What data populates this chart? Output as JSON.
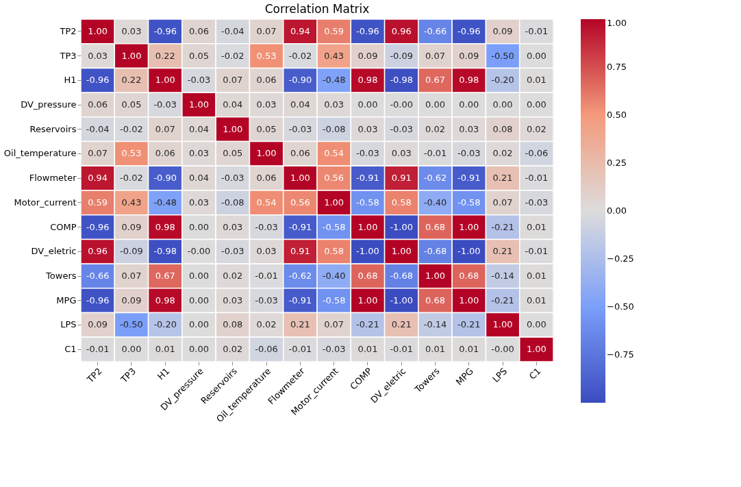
{
  "chart_data": {
    "type": "heatmap",
    "title": "Correlation Matrix",
    "categories": [
      "TP2",
      "TP3",
      "H1",
      "DV_pressure",
      "Reservoirs",
      "Oil_temperature",
      "Flowmeter",
      "Motor_current",
      "COMP",
      "DV_eletric",
      "Towers",
      "MPG",
      "LPS",
      "C1"
    ],
    "y_categories": [
      "TP2",
      "TP3",
      "H1",
      "DV_pressure",
      "Reservoirs",
      "Oil_temperature",
      "Flowmeter",
      "Motor_current",
      "COMP",
      "DV_eletric",
      "Towers",
      "MPG",
      "LPS",
      "C1"
    ],
    "cells": [
      [
        1.0,
        0.03,
        -0.96,
        0.06,
        -0.04,
        0.07,
        0.94,
        0.59,
        -0.96,
        0.96,
        -0.66,
        -0.96,
        0.09,
        -0.01
      ],
      [
        0.03,
        1.0,
        0.22,
        0.05,
        -0.02,
        0.53,
        -0.02,
        0.43,
        0.09,
        -0.09,
        0.07,
        0.09,
        -0.5,
        0.0
      ],
      [
        -0.96,
        0.22,
        1.0,
        -0.03,
        0.07,
        0.06,
        -0.9,
        -0.48,
        0.98,
        -0.98,
        0.67,
        0.98,
        -0.2,
        0.01
      ],
      [
        0.06,
        0.05,
        -0.03,
        1.0,
        0.04,
        0.03,
        0.04,
        0.03,
        0.0,
        0.0,
        0.0,
        0.0,
        0.0,
        0.0
      ],
      [
        -0.04,
        -0.02,
        0.07,
        0.04,
        1.0,
        0.05,
        -0.03,
        -0.08,
        0.03,
        -0.03,
        0.02,
        0.03,
        0.08,
        0.02
      ],
      [
        0.07,
        0.53,
        0.06,
        0.03,
        0.05,
        1.0,
        0.06,
        0.54,
        -0.03,
        0.03,
        -0.01,
        -0.03,
        0.02,
        -0.06
      ],
      [
        0.94,
        -0.02,
        -0.9,
        0.04,
        -0.03,
        0.06,
        1.0,
        0.56,
        -0.91,
        0.91,
        -0.62,
        -0.91,
        0.21,
        -0.01
      ],
      [
        0.59,
        0.43,
        -0.48,
        0.03,
        -0.08,
        0.54,
        0.56,
        1.0,
        -0.58,
        0.58,
        -0.4,
        -0.58,
        0.07,
        -0.03
      ],
      [
        -0.96,
        0.09,
        0.98,
        0.0,
        0.03,
        -0.03,
        -0.91,
        -0.58,
        1.0,
        -1.0,
        0.68,
        1.0,
        -0.21,
        0.01
      ],
      [
        0.96,
        -0.09,
        -0.98,
        0.0,
        -0.03,
        0.03,
        0.91,
        0.58,
        -1.0,
        1.0,
        -0.68,
        -1.0,
        0.21,
        -0.01
      ],
      [
        -0.66,
        0.07,
        0.67,
        0.0,
        0.02,
        -0.01,
        -0.62,
        -0.4,
        0.68,
        -0.68,
        1.0,
        0.68,
        -0.14,
        0.01
      ],
      [
        -0.96,
        0.09,
        0.98,
        0.0,
        0.03,
        -0.03,
        -0.91,
        -0.58,
        1.0,
        -1.0,
        0.68,
        1.0,
        -0.21,
        0.01
      ],
      [
        0.09,
        -0.5,
        -0.2,
        0.0,
        0.08,
        0.02,
        0.21,
        0.07,
        -0.21,
        0.21,
        -0.14,
        -0.21,
        1.0,
        0.0
      ],
      [
        -0.01,
        0.0,
        0.01,
        0.0,
        0.02,
        -0.06,
        -0.01,
        -0.03,
        0.01,
        -0.01,
        0.01,
        0.01,
        0.0,
        1.0
      ]
    ],
    "cell_labels": [
      [
        "1.00",
        "0.03",
        "-0.96",
        "0.06",
        "-0.04",
        "0.07",
        "0.94",
        "0.59",
        "-0.96",
        "0.96",
        "-0.66",
        "-0.96",
        "0.09",
        "-0.01"
      ],
      [
        "0.03",
        "1.00",
        "0.22",
        "0.05",
        "-0.02",
        "0.53",
        "-0.02",
        "0.43",
        "0.09",
        "-0.09",
        "0.07",
        "0.09",
        "-0.50",
        "0.00"
      ],
      [
        "-0.96",
        "0.22",
        "1.00",
        "-0.03",
        "0.07",
        "0.06",
        "-0.90",
        "-0.48",
        "0.98",
        "-0.98",
        "0.67",
        "0.98",
        "-0.20",
        "0.01"
      ],
      [
        "0.06",
        "0.05",
        "-0.03",
        "1.00",
        "0.04",
        "0.03",
        "0.04",
        "0.03",
        "0.00",
        "-0.00",
        "0.00",
        "0.00",
        "0.00",
        "0.00"
      ],
      [
        "-0.04",
        "-0.02",
        "0.07",
        "0.04",
        "1.00",
        "0.05",
        "-0.03",
        "-0.08",
        "0.03",
        "-0.03",
        "0.02",
        "0.03",
        "0.08",
        "0.02"
      ],
      [
        "0.07",
        "0.53",
        "0.06",
        "0.03",
        "0.05",
        "1.00",
        "0.06",
        "0.54",
        "-0.03",
        "0.03",
        "-0.01",
        "-0.03",
        "0.02",
        "-0.06"
      ],
      [
        "0.94",
        "-0.02",
        "-0.90",
        "0.04",
        "-0.03",
        "0.06",
        "1.00",
        "0.56",
        "-0.91",
        "0.91",
        "-0.62",
        "-0.91",
        "0.21",
        "-0.01"
      ],
      [
        "0.59",
        "0.43",
        "-0.48",
        "0.03",
        "-0.08",
        "0.54",
        "0.56",
        "1.00",
        "-0.58",
        "0.58",
        "-0.40",
        "-0.58",
        "0.07",
        "-0.03"
      ],
      [
        "-0.96",
        "0.09",
        "0.98",
        "0.00",
        "0.03",
        "-0.03",
        "-0.91",
        "-0.58",
        "1.00",
        "-1.00",
        "0.68",
        "1.00",
        "-0.21",
        "0.01"
      ],
      [
        "0.96",
        "-0.09",
        "-0.98",
        "-0.00",
        "-0.03",
        "0.03",
        "0.91",
        "0.58",
        "-1.00",
        "1.00",
        "-0.68",
        "-1.00",
        "0.21",
        "-0.01"
      ],
      [
        "-0.66",
        "0.07",
        "0.67",
        "0.00",
        "0.02",
        "-0.01",
        "-0.62",
        "-0.40",
        "0.68",
        "-0.68",
        "1.00",
        "0.68",
        "-0.14",
        "0.01"
      ],
      [
        "-0.96",
        "0.09",
        "0.98",
        "0.00",
        "0.03",
        "-0.03",
        "-0.91",
        "-0.58",
        "1.00",
        "-1.00",
        "0.68",
        "1.00",
        "-0.21",
        "0.01"
      ],
      [
        "0.09",
        "-0.50",
        "-0.20",
        "0.00",
        "0.08",
        "0.02",
        "0.21",
        "0.07",
        "-0.21",
        "0.21",
        "-0.14",
        "-0.21",
        "1.00",
        "0.00"
      ],
      [
        "-0.01",
        "0.00",
        "0.01",
        "0.00",
        "0.02",
        "-0.06",
        "-0.01",
        "-0.03",
        "0.01",
        "-0.01",
        "0.01",
        "0.01",
        "-0.00",
        "1.00"
      ]
    ],
    "data_labels": true,
    "clim": [
      -1,
      1
    ],
    "cticks": [
      {
        "value": 1,
        "label": "1.00"
      },
      {
        "value": 0.75,
        "label": "0.75"
      },
      {
        "value": 0.5,
        "label": "0.50"
      },
      {
        "value": 0.25,
        "label": "0.25"
      },
      {
        "value": 0,
        "label": "0.00"
      },
      {
        "value": -0.25,
        "label": "−0.25"
      },
      {
        "value": -0.5,
        "label": "−0.50"
      },
      {
        "value": -0.75,
        "label": "−0.75"
      }
    ]
  }
}
